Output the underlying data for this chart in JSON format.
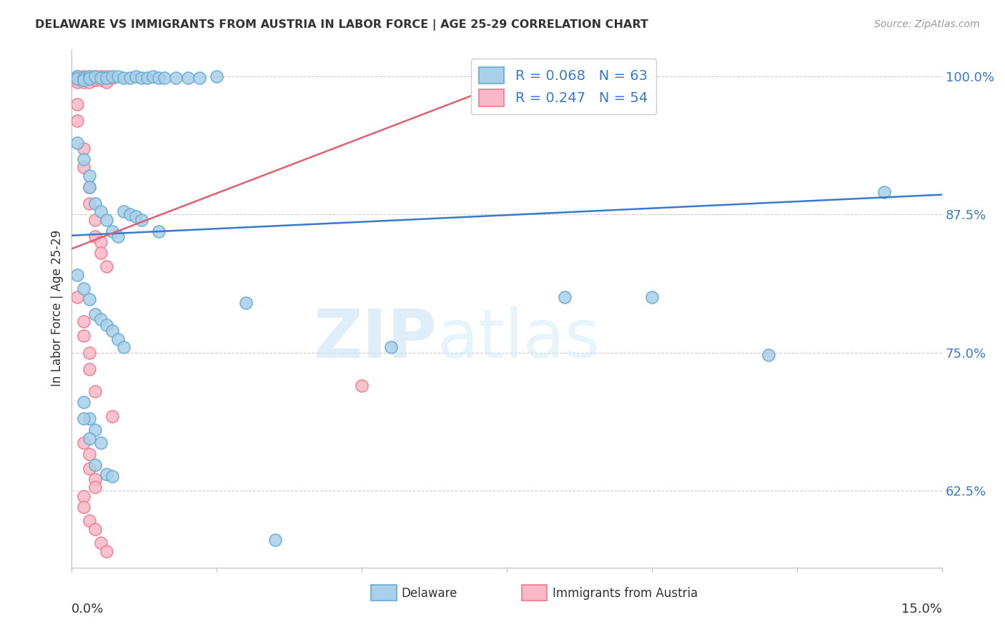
{
  "title": "DELAWARE VS IMMIGRANTS FROM AUSTRIA IN LABOR FORCE | AGE 25-29 CORRELATION CHART",
  "source": "Source: ZipAtlas.com",
  "ylabel": "In Labor Force | Age 25-29",
  "xlim": [
    0.0,
    0.15
  ],
  "ylim": [
    0.555,
    1.025
  ],
  "xticks": [
    0.0,
    0.025,
    0.05,
    0.075,
    0.1,
    0.125,
    0.15
  ],
  "xticklabels": [
    "0.0%",
    "",
    "",
    "",
    "",
    "",
    "15.0%"
  ],
  "yticks": [
    0.625,
    0.75,
    0.875,
    1.0
  ],
  "yticklabels": [
    "62.5%",
    "75.0%",
    "87.5%",
    "100.0%"
  ],
  "watermark_zip": "ZIP",
  "watermark_atlas": "atlas",
  "blue_line_x": [
    0.0,
    0.15
  ],
  "blue_line_y": [
    0.856,
    0.893
  ],
  "pink_line_x": [
    0.0,
    0.08
  ],
  "pink_line_y": [
    0.844,
    1.005
  ],
  "blue_scatter_x": [
    0.001,
    0.001,
    0.002,
    0.002,
    0.003,
    0.003,
    0.004,
    0.005,
    0.006,
    0.007,
    0.008,
    0.009,
    0.01,
    0.011,
    0.012,
    0.013,
    0.014,
    0.015,
    0.016,
    0.018,
    0.02,
    0.022,
    0.025,
    0.001,
    0.002,
    0.003,
    0.003,
    0.004,
    0.005,
    0.006,
    0.007,
    0.008,
    0.009,
    0.01,
    0.011,
    0.012,
    0.015,
    0.001,
    0.002,
    0.003,
    0.004,
    0.005,
    0.006,
    0.007,
    0.008,
    0.009,
    0.002,
    0.003,
    0.004,
    0.005,
    0.006,
    0.007,
    0.03,
    0.055,
    0.085,
    0.002,
    0.003,
    0.004,
    0.1,
    0.12,
    0.14,
    0.035
  ],
  "blue_scatter_y": [
    1.0,
    0.998,
    0.999,
    0.997,
    1.0,
    0.998,
    1.0,
    0.999,
    0.999,
    1.0,
    1.0,
    0.999,
    0.999,
    1.0,
    0.999,
    0.999,
    1.0,
    0.999,
    0.999,
    0.999,
    0.999,
    0.999,
    1.0,
    0.94,
    0.925,
    0.91,
    0.9,
    0.885,
    0.878,
    0.87,
    0.86,
    0.855,
    0.878,
    0.875,
    0.873,
    0.87,
    0.86,
    0.82,
    0.808,
    0.798,
    0.785,
    0.78,
    0.775,
    0.77,
    0.762,
    0.755,
    0.705,
    0.69,
    0.68,
    0.668,
    0.64,
    0.638,
    0.795,
    0.755,
    0.8,
    0.69,
    0.672,
    0.648,
    0.8,
    0.748,
    0.895,
    0.58
  ],
  "pink_scatter_x": [
    0.001,
    0.001,
    0.001,
    0.001,
    0.001,
    0.002,
    0.002,
    0.002,
    0.002,
    0.003,
    0.003,
    0.003,
    0.003,
    0.004,
    0.004,
    0.004,
    0.005,
    0.005,
    0.005,
    0.006,
    0.006,
    0.006,
    0.007,
    0.001,
    0.001,
    0.002,
    0.002,
    0.003,
    0.003,
    0.004,
    0.004,
    0.005,
    0.005,
    0.006,
    0.001,
    0.002,
    0.002,
    0.003,
    0.003,
    0.004,
    0.002,
    0.003,
    0.003,
    0.004,
    0.004,
    0.002,
    0.002,
    0.003,
    0.004,
    0.005,
    0.006,
    0.007,
    0.05
  ],
  "pink_scatter_y": [
    1.0,
    0.999,
    0.998,
    0.997,
    0.995,
    1.0,
    0.999,
    0.997,
    0.995,
    1.0,
    0.999,
    0.997,
    0.995,
    1.0,
    0.999,
    0.997,
    1.0,
    0.999,
    0.997,
    1.0,
    0.998,
    0.995,
    0.999,
    0.975,
    0.96,
    0.935,
    0.918,
    0.9,
    0.885,
    0.87,
    0.855,
    0.85,
    0.84,
    0.828,
    0.8,
    0.778,
    0.765,
    0.75,
    0.735,
    0.715,
    0.668,
    0.658,
    0.645,
    0.635,
    0.628,
    0.62,
    0.61,
    0.598,
    0.59,
    0.578,
    0.57,
    0.692,
    0.72
  ],
  "blue_color": "#6aaed6",
  "blue_face": "#aacfe8",
  "pink_color": "#f08090",
  "pink_face": "#f9b8c8",
  "background_color": "#ffffff",
  "grid_color": "#cccccc"
}
